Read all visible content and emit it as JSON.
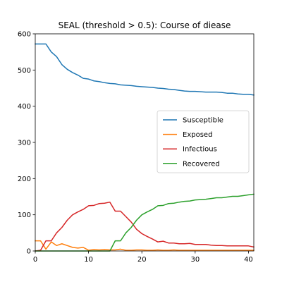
{
  "chart_data": {
    "type": "line",
    "title": "SEAL (threshold > 0.5): Course of diease",
    "xlabel": "",
    "ylabel": "",
    "xlim": [
      0,
      41
    ],
    "ylim": [
      0,
      600
    ],
    "x_ticks": [
      0,
      10,
      20,
      30,
      40
    ],
    "y_ticks": [
      0,
      100,
      200,
      300,
      400,
      500,
      600
    ],
    "grid": false,
    "legend_position": "center-right",
    "x": [
      0,
      1,
      2,
      3,
      4,
      5,
      6,
      7,
      8,
      9,
      10,
      11,
      12,
      13,
      14,
      15,
      16,
      17,
      18,
      19,
      20,
      21,
      22,
      23,
      24,
      25,
      26,
      27,
      28,
      29,
      30,
      31,
      32,
      33,
      34,
      35,
      36,
      37,
      38,
      39,
      40,
      41
    ],
    "series": [
      {
        "name": "Susceptible",
        "color": "#1f77b4",
        "values": [
          572,
          572,
          572,
          550,
          537,
          515,
          502,
          493,
          486,
          477,
          475,
          470,
          468,
          465,
          463,
          462,
          459,
          458,
          457,
          455,
          454,
          453,
          452,
          450,
          449,
          447,
          446,
          444,
          442,
          441,
          441,
          440,
          439,
          439,
          439,
          438,
          436,
          436,
          434,
          433,
          433,
          431
        ]
      },
      {
        "name": "Exposed",
        "color": "#ff7f0e",
        "values": [
          28,
          28,
          5,
          25,
          15,
          20,
          15,
          10,
          8,
          10,
          2,
          4,
          3,
          4,
          3,
          3,
          5,
          2,
          2,
          3,
          3,
          2,
          2,
          3,
          2,
          2,
          3,
          2,
          2,
          2,
          2,
          2,
          2,
          2,
          2,
          2,
          2,
          2,
          2,
          2,
          2,
          2
        ]
      },
      {
        "name": "Infectious",
        "color": "#d62728",
        "values": [
          0,
          2,
          28,
          28,
          50,
          65,
          85,
          100,
          108,
          115,
          125,
          126,
          131,
          132,
          135,
          110,
          110,
          95,
          80,
          60,
          48,
          40,
          33,
          25,
          27,
          22,
          22,
          20,
          20,
          21,
          18,
          18,
          18,
          16,
          15,
          15,
          14,
          14,
          14,
          14,
          14,
          11
        ]
      },
      {
        "name": "Recovered",
        "color": "#2ca02c",
        "values": [
          0,
          0,
          0,
          0,
          0,
          0,
          0,
          0,
          0,
          0,
          0,
          0,
          0,
          0,
          0,
          28,
          28,
          50,
          65,
          85,
          100,
          108,
          115,
          125,
          126,
          131,
          132,
          135,
          137,
          138,
          141,
          142,
          143,
          145,
          147,
          147,
          149,
          151,
          151,
          153,
          155,
          157
        ]
      }
    ]
  }
}
